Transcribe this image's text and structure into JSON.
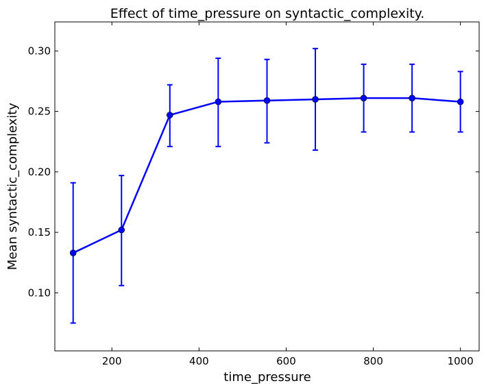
{
  "chart_data": {
    "type": "line",
    "title": "Effect of time_pressure on syntactic_complexity.",
    "xlabel": "time_pressure",
    "ylabel": "Mean syntactic_complexity",
    "xlim": [
      69,
      1043
    ],
    "ylim": [
      0.052,
      0.324
    ],
    "xticks": [
      200,
      400,
      600,
      800,
      1000
    ],
    "xtick_labels": [
      "200",
      "400",
      "600",
      "800",
      "1000"
    ],
    "yticks": [
      0.1,
      0.15,
      0.2,
      0.25,
      0.3
    ],
    "ytick_labels": [
      "0.10",
      "0.15",
      "0.20",
      "0.25",
      "0.30"
    ],
    "grid": false,
    "series": [
      {
        "color": "#0000ff",
        "x": [
          111,
          222,
          333,
          444,
          556,
          667,
          778,
          889,
          1000
        ],
        "y": [
          0.133,
          0.152,
          0.247,
          0.258,
          0.259,
          0.26,
          0.261,
          0.261,
          0.258
        ],
        "err_low": [
          0.075,
          0.106,
          0.221,
          0.221,
          0.224,
          0.218,
          0.233,
          0.233,
          0.233
        ],
        "err_high": [
          0.191,
          0.197,
          0.272,
          0.294,
          0.293,
          0.302,
          0.289,
          0.289,
          0.283
        ]
      }
    ]
  }
}
